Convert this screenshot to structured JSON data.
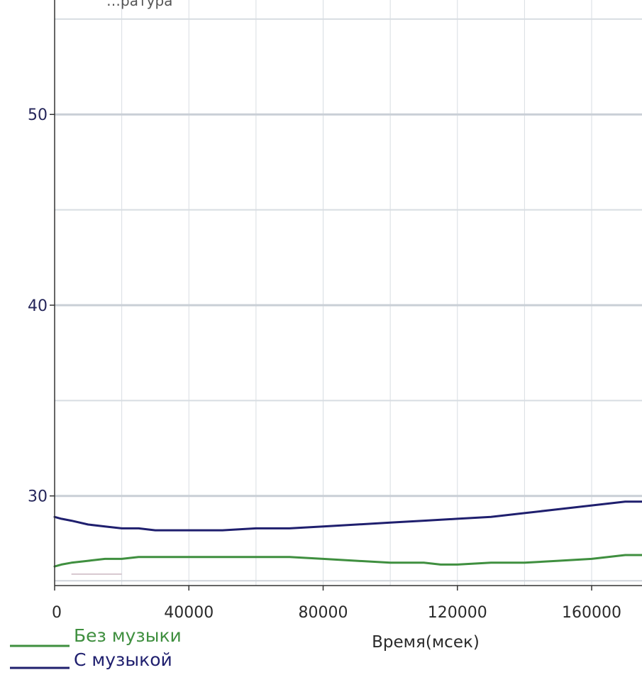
{
  "chart_data": {
    "type": "line",
    "title": "",
    "xlabel": "Время(мсек)",
    "ylabel": "",
    "title_partial": "…ратура",
    "xlim": [
      0,
      175000
    ],
    "ylim": [
      25.3,
      56
    ],
    "x_ticks": [
      0,
      40000,
      80000,
      120000,
      160000
    ],
    "x_tick_labels": [
      "0",
      "40000",
      "80000",
      "120000",
      "160000"
    ],
    "y_ticks": [
      30,
      40,
      50
    ],
    "y_tick_labels": [
      "30",
      "40",
      "50"
    ],
    "grid": true,
    "legend_position": "bottom-left",
    "series": [
      {
        "name": "Без музыки",
        "color": "#3f8f3f",
        "x": [
          0,
          2000,
          5000,
          10000,
          15000,
          20000,
          25000,
          30000,
          40000,
          50000,
          60000,
          70000,
          80000,
          90000,
          100000,
          110000,
          115000,
          120000,
          130000,
          140000,
          150000,
          160000,
          170000,
          175000
        ],
        "y": [
          26.3,
          26.4,
          26.5,
          26.6,
          26.7,
          26.7,
          26.8,
          26.8,
          26.8,
          26.8,
          26.8,
          26.8,
          26.7,
          26.6,
          26.5,
          26.5,
          26.4,
          26.4,
          26.5,
          26.5,
          26.6,
          26.7,
          26.9,
          26.9
        ]
      },
      {
        "name": "С музыкой",
        "color": "#1f1f6e",
        "x": [
          0,
          2000,
          5000,
          10000,
          15000,
          20000,
          25000,
          30000,
          40000,
          50000,
          60000,
          70000,
          80000,
          90000,
          100000,
          110000,
          120000,
          130000,
          140000,
          150000,
          160000,
          170000,
          175000
        ],
        "y": [
          28.9,
          28.8,
          28.7,
          28.5,
          28.4,
          28.3,
          28.3,
          28.2,
          28.2,
          28.2,
          28.3,
          28.3,
          28.4,
          28.5,
          28.6,
          28.7,
          28.8,
          28.9,
          29.1,
          29.3,
          29.5,
          29.7,
          29.7
        ]
      }
    ]
  },
  "legend": [
    {
      "label": "Без музыки",
      "color": "#3f8f3f"
    },
    {
      "label": "С музыкой",
      "color": "#1f1f6e"
    }
  ],
  "colors": {
    "grid_major": "#c9cfd6",
    "grid_minor": "#d8dde2",
    "axis": "#333333",
    "residual_band": "#d7c7cf"
  }
}
